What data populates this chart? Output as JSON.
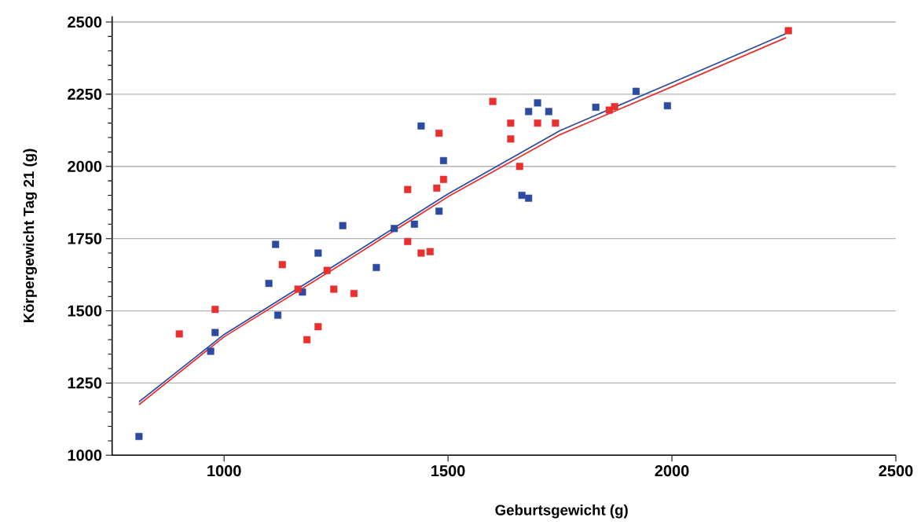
{
  "chart_data": {
    "type": "scatter",
    "xlabel": "Geburtsgewicht (g)",
    "ylabel": "Körpergewicht Tag 21 (g)",
    "xlim": [
      750,
      2500
    ],
    "ylim": [
      1000,
      2520
    ],
    "xticks": [
      1000,
      1500,
      2000,
      2500
    ],
    "yticks": [
      1000,
      1250,
      1500,
      1750,
      2000,
      2250,
      2500
    ],
    "grid": "y",
    "marker": "square",
    "series": [
      {
        "color": "#2b4aa0",
        "x": [
          810,
          970,
          980,
          1100,
          1115,
          1120,
          1175,
          1210,
          1265,
          1340,
          1380,
          1425,
          1440,
          1480,
          1490,
          1665,
          1680,
          1680,
          1700,
          1725,
          1830,
          1920,
          1990
        ],
        "values": [
          1065,
          1360,
          1425,
          1595,
          1730,
          1485,
          1565,
          1700,
          1795,
          1650,
          1785,
          1800,
          2140,
          1845,
          2020,
          1900,
          1890,
          2190,
          2220,
          2190,
          2205,
          2260,
          2210
        ]
      },
      {
        "color": "#e8302f",
        "x": [
          900,
          980,
          1130,
          1165,
          1185,
          1210,
          1230,
          1245,
          1290,
          1410,
          1410,
          1440,
          1460,
          1475,
          1480,
          1490,
          1600,
          1640,
          1640,
          1660,
          1700,
          1740,
          1860,
          1872,
          2260
        ],
        "values": [
          1420,
          1505,
          1660,
          1575,
          1400,
          1445,
          1640,
          1575,
          1560,
          1920,
          1740,
          1700,
          1705,
          1925,
          2115,
          1955,
          2225,
          2150,
          2095,
          2000,
          2150,
          2150,
          2195,
          2207,
          2470
        ]
      },
      {
        "type": "line",
        "marker": "none",
        "color": "#2b4aa0",
        "x": [
          810,
          1000,
          1250,
          1500,
          1750,
          2000,
          2255
        ],
        "values": [
          1185,
          1418,
          1660,
          1905,
          2124,
          2290,
          2460
        ]
      },
      {
        "type": "line",
        "marker": "none",
        "color": "#e8302f",
        "x": [
          810,
          1000,
          1250,
          1500,
          1750,
          2000,
          2255
        ],
        "values": [
          1175,
          1410,
          1650,
          1895,
          2110,
          2276,
          2446
        ]
      }
    ]
  }
}
